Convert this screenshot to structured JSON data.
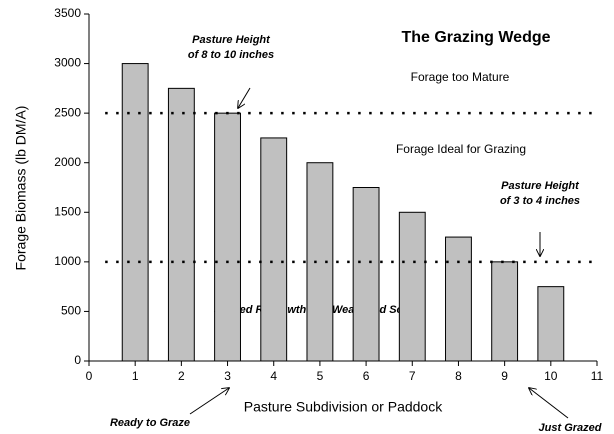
{
  "chart_data": {
    "type": "bar",
    "title": "The Grazing Wedge",
    "x": [
      1,
      2,
      3,
      4,
      5,
      6,
      7,
      8,
      9,
      10
    ],
    "values": [
      3000,
      2750,
      2500,
      2250,
      2000,
      1750,
      1500,
      1250,
      1000,
      750
    ],
    "color": "#c0c0c0",
    "xlim": [
      0,
      11
    ],
    "xticks": [
      0,
      1,
      2,
      3,
      4,
      5,
      6,
      7,
      8,
      9,
      10,
      11
    ],
    "ylim": [
      0,
      3500
    ],
    "yticks": [
      0,
      500,
      1000,
      1500,
      2000,
      2500,
      3000,
      3500
    ],
    "xlabel": "Pasture Subdivision or Paddock",
    "ylabel": "Forage Biomass (lb DM/A)",
    "reference_lines": [
      2500,
      1000
    ],
    "annotations": {
      "high_height": [
        "Pasture Height",
        "of 8 to 10 inches"
      ],
      "low_height": [
        "Pasture Height",
        "of 3 to 4 inches"
      ],
      "too_mature": "Forage too Mature",
      "ideal": "Forage Ideal for Grazing",
      "slowed": "Slowed Regrowth and Weakened Sod",
      "ready": "Ready to Graze",
      "just_grazed": "Just Grazed"
    }
  }
}
